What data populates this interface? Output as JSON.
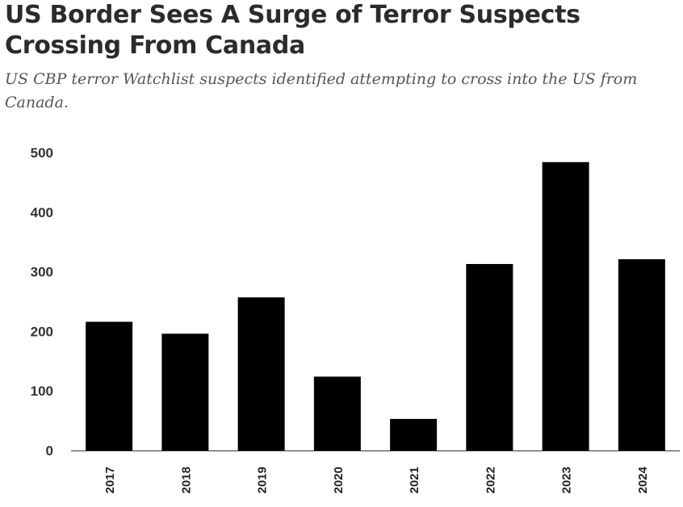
{
  "header": {
    "title": "US Border Sees A Surge of Terror Suspects Crossing From Canada",
    "subtitle": "US CBP terror Watchlist suspects identified attempting to cross into the US from Canada."
  },
  "chart_data": {
    "type": "bar",
    "categories": [
      "2017",
      "2018",
      "2019",
      "2020",
      "2021",
      "2022",
      "2023",
      "2024"
    ],
    "values": [
      216,
      196,
      257,
      124,
      53,
      313,
      484,
      321
    ],
    "yticks": [
      0,
      100,
      200,
      300,
      400,
      500
    ],
    "ylim": [
      0,
      500
    ],
    "grid": false,
    "bar_color": "#000000",
    "axis_color": "#333333"
  }
}
